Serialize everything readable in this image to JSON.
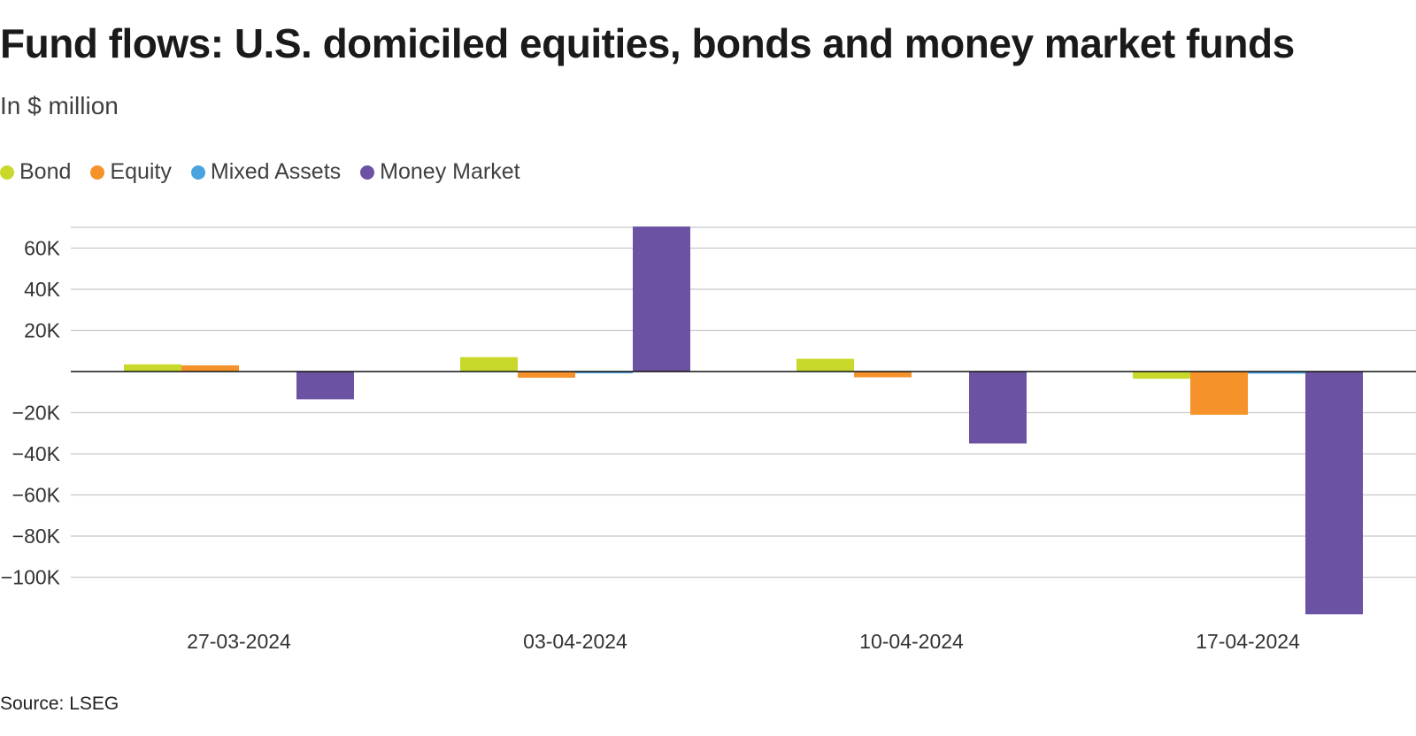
{
  "title": "Fund flows: U.S. domiciled equities, bonds and money market funds",
  "subtitle": "In $ million",
  "source": "Source: LSEG",
  "chart_data": {
    "type": "bar",
    "categories": [
      "27-03-2024",
      "03-04-2024",
      "10-04-2024",
      "17-04-2024"
    ],
    "series": [
      {
        "name": "Bond",
        "color": "#c8d92b",
        "values": [
          3500,
          7000,
          6200,
          -3500
        ]
      },
      {
        "name": "Equity",
        "color": "#f5922a",
        "values": [
          3000,
          -3000,
          -2800,
          -21000
        ]
      },
      {
        "name": "Mixed Assets",
        "color": "#4aa3df",
        "values": [
          0,
          -500,
          0,
          -1000
        ]
      },
      {
        "name": "Money Market",
        "color": "#6b52a3",
        "values": [
          -13500,
          70500,
          -35000,
          -118000
        ]
      }
    ],
    "ylim": [
      -120000,
      70000
    ],
    "y_ticks": [
      60000,
      40000,
      20000,
      0,
      -20000,
      -40000,
      -60000,
      -80000,
      -100000
    ],
    "y_tick_labels": [
      "60K",
      "40K",
      "20K",
      "",
      "−20K",
      "−40K",
      "−60K",
      "−80K",
      "−100K"
    ],
    "grid": true,
    "legend_position": "top-left",
    "xlabel": "",
    "ylabel": ""
  }
}
